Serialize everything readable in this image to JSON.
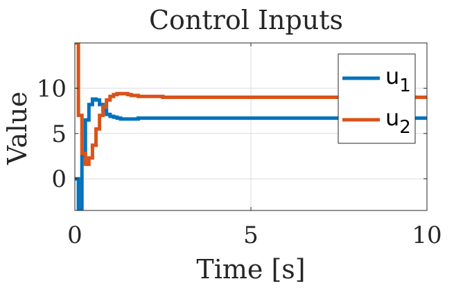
{
  "chart_data": {
    "type": "line",
    "title": "Control Inputs",
    "xlabel": "Time [s]",
    "ylabel": "Value",
    "xlim": [
      0,
      10
    ],
    "ylim": [
      -3.5,
      15
    ],
    "xticks": [
      0,
      5,
      10
    ],
    "xtick_labels": [
      "0",
      "5",
      "10"
    ],
    "yticks": [
      0,
      5,
      10
    ],
    "ytick_labels": [
      "0",
      "5",
      "10"
    ],
    "grid": true,
    "legend_position": "top-right",
    "step": true,
    "series": [
      {
        "name": "u",
        "subscript": "1",
        "color": "#0072BD",
        "x": [
          0,
          0.1,
          0.2,
          0.3,
          0.4,
          0.5,
          0.6,
          0.7,
          0.8,
          0.9,
          1.0,
          1.1,
          1.2,
          1.3,
          1.4,
          1.5,
          1.6,
          1.7,
          1.8,
          2.0,
          2.2,
          2.5,
          3.0,
          4.0,
          10.0
        ],
        "values": [
          0,
          -3.5,
          2.5,
          6.5,
          8.2,
          8.8,
          8.7,
          8.2,
          7.6,
          7.1,
          6.9,
          6.8,
          6.7,
          6.6,
          6.6,
          6.6,
          6.6,
          6.6,
          6.7,
          6.7,
          6.7,
          6.7,
          6.7,
          6.7,
          6.7
        ]
      },
      {
        "name": "u",
        "subscript": "2",
        "color": "#D95319",
        "x": [
          0,
          0.1,
          0.2,
          0.3,
          0.4,
          0.5,
          0.6,
          0.7,
          0.8,
          0.9,
          1.0,
          1.1,
          1.2,
          1.3,
          1.4,
          1.5,
          1.6,
          1.8,
          2.0,
          2.2,
          2.5,
          3.0,
          4.0,
          10.0
        ],
        "values": [
          15,
          7.0,
          2.8,
          1.6,
          2.3,
          3.7,
          5.5,
          7.0,
          8.0,
          8.7,
          9.1,
          9.3,
          9.4,
          9.4,
          9.4,
          9.3,
          9.2,
          9.1,
          9.1,
          9.1,
          9.0,
          9.0,
          9.0,
          9.0
        ]
      }
    ]
  }
}
